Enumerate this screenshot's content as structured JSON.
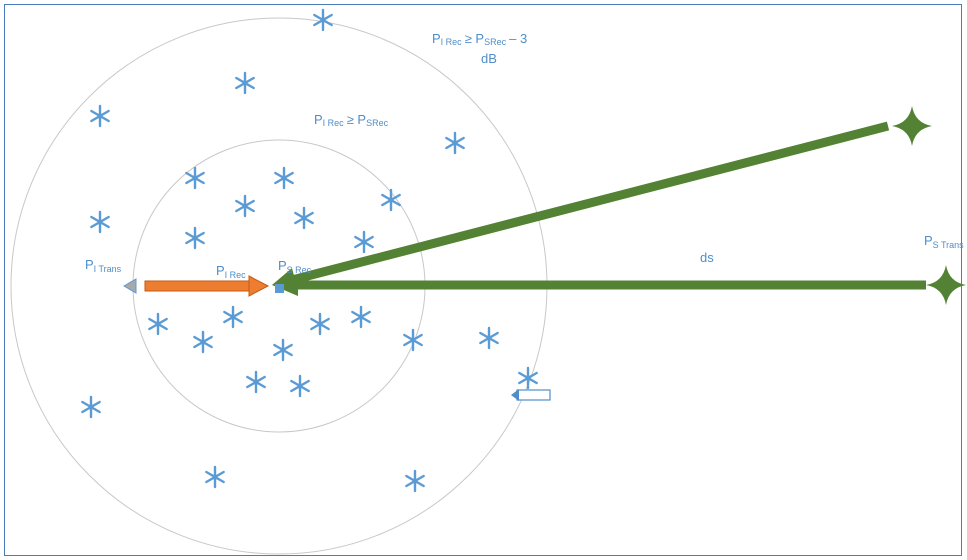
{
  "labels": {
    "outer_condition_line1": {
      "p": "P",
      "s1": "I Rec",
      "op": "≥ P",
      "s2": "SRec",
      "tail": "– 3"
    },
    "outer_condition_line2": "dB",
    "inner_condition": {
      "p": "P",
      "s1": "I Rec",
      "op": "≥ P",
      "s2": "SRec"
    },
    "interferer_transmitter": {
      "p": "P",
      "s": "I Trans"
    },
    "interferer_receive": {
      "p": "P",
      "s": "I Rec"
    },
    "satellite_receive": {
      "p": "P",
      "s": "S Rec"
    },
    "satellite_transmitter": {
      "p": "P",
      "s": "S Trans"
    },
    "distance": "ds"
  },
  "colors": {
    "frame": "#4a7ebb",
    "circle": "#c8c8c8",
    "star": "#5b9bd5",
    "signal_arrow": "#548235",
    "interferer_arrow": "#ed7d31",
    "text": "#4f8ec9"
  },
  "icons": {
    "star": "six-point-star-icon",
    "transmitter": "four-point-star-icon",
    "receiver": "square-receiver-icon",
    "arrow": "arrow-icon"
  }
}
